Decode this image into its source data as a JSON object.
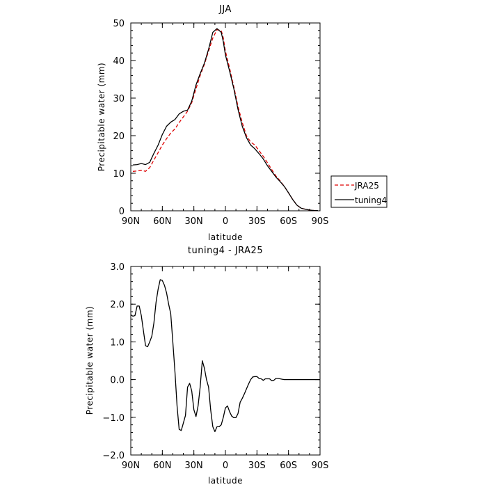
{
  "chart_data": [
    {
      "type": "line",
      "title": "JJA",
      "xlabel": "latitude",
      "ylabel": "Precipitable water (mm)",
      "xlim": [
        90,
        -90
      ],
      "ylim": [
        0,
        50
      ],
      "xticks": [
        90,
        60,
        30,
        0,
        -30,
        -60,
        -90
      ],
      "xtick_labels": [
        "90N",
        "60N",
        "30N",
        "0",
        "30S",
        "60S",
        "90S"
      ],
      "yticks": [
        0,
        10,
        20,
        30,
        40,
        50
      ],
      "ytick_labels": [
        "0",
        "10",
        "20",
        "30",
        "40",
        "50"
      ],
      "legend": {
        "placement": "right"
      },
      "series": [
        {
          "name": "JRA25",
          "color": "#dd0000",
          "dash": "dashed",
          "x": [
            88,
            84,
            80,
            76,
            72,
            68,
            64,
            60,
            56,
            52,
            48,
            44,
            40,
            36,
            32,
            28,
            24,
            20,
            16,
            12,
            8,
            4,
            2,
            0,
            -4,
            -8,
            -12,
            -16,
            -20,
            -24,
            -28,
            -32,
            -36,
            -40,
            -44,
            -48,
            -52,
            -56,
            -60,
            -64,
            -68,
            -72,
            -76,
            -80,
            -84,
            -88
          ],
          "y": [
            10.5,
            10.6,
            10.8,
            10.5,
            11.5,
            13.5,
            15.5,
            17.5,
            19.2,
            20.7,
            21.8,
            23.5,
            25.0,
            26.5,
            28.8,
            32.5,
            36.0,
            39.0,
            42.5,
            46.0,
            48.2,
            48.0,
            46.0,
            42.5,
            38.0,
            33.0,
            27.8,
            23.5,
            20.0,
            18.3,
            17.5,
            16.0,
            14.5,
            12.8,
            11.0,
            9.3,
            8.0,
            6.5,
            4.8,
            3.0,
            1.5,
            0.7,
            0.4,
            0.2,
            0.1,
            0.05
          ]
        },
        {
          "name": "tuning4",
          "color": "#000000",
          "dash": "solid",
          "x": [
            88,
            84,
            80,
            76,
            72,
            68,
            64,
            60,
            56,
            52,
            48,
            44,
            40,
            36,
            32,
            28,
            24,
            20,
            16,
            12,
            8,
            4,
            2,
            0,
            -4,
            -8,
            -12,
            -16,
            -20,
            -24,
            -28,
            -32,
            -36,
            -40,
            -44,
            -48,
            -52,
            -56,
            -60,
            -64,
            -68,
            -72,
            -76,
            -80,
            -84,
            -88
          ],
          "y": [
            12.2,
            12.3,
            12.6,
            12.3,
            12.9,
            15.3,
            17.5,
            20.3,
            22.5,
            23.6,
            24.3,
            25.8,
            26.5,
            26.8,
            29.2,
            33.5,
            36.5,
            39.3,
            43.0,
            47.5,
            48.5,
            47.5,
            45.0,
            41.5,
            37.2,
            32.5,
            27.0,
            22.5,
            19.5,
            17.5,
            16.5,
            15.2,
            13.8,
            12.0,
            10.5,
            9.0,
            7.8,
            6.5,
            4.8,
            3.0,
            1.5,
            0.7,
            0.4,
            0.2,
            0.1,
            0.05
          ]
        }
      ]
    },
    {
      "type": "line",
      "title": "tuning4 - JRA25",
      "xlabel": "latitude",
      "ylabel": "Precipitable water (mm)",
      "xlim": [
        90,
        -90
      ],
      "ylim": [
        -2,
        3
      ],
      "xticks": [
        90,
        60,
        30,
        0,
        -30,
        -60,
        -90
      ],
      "xtick_labels": [
        "90N",
        "60N",
        "30N",
        "0",
        "30S",
        "60S",
        "90S"
      ],
      "yticks": [
        -2,
        -1,
        0,
        1,
        2,
        3
      ],
      "ytick_labels": [
        "−2.0",
        "−1.0",
        "0.0",
        "1.0",
        "2.0",
        "3.0"
      ],
      "series": [
        {
          "color": "#000000",
          "dash": "solid",
          "x": [
            90,
            88,
            86,
            84,
            82,
            80,
            78,
            76,
            74,
            72,
            70,
            68,
            66,
            64,
            62,
            60,
            58,
            56,
            54,
            52,
            50,
            48,
            46,
            44,
            42,
            40,
            38,
            36,
            34,
            32,
            30,
            28,
            26,
            24,
            22,
            20,
            18,
            16,
            14,
            12,
            10,
            8,
            6,
            4,
            2,
            0,
            -2,
            -4,
            -6,
            -8,
            -10,
            -12,
            -14,
            -16,
            -18,
            -20,
            -22,
            -24,
            -26,
            -28,
            -30,
            -32,
            -34,
            -36,
            -38,
            -40,
            -42,
            -44,
            -46,
            -48,
            -50,
            -52,
            -54,
            -56,
            -58,
            -60,
            -62,
            -64,
            -66,
            -68,
            -70,
            -72,
            -74,
            -76,
            -78,
            -80,
            -82,
            -84,
            -86,
            -88,
            -90
          ],
          "y": [
            1.72,
            1.68,
            1.7,
            1.95,
            1.95,
            1.7,
            1.3,
            0.9,
            0.87,
            1.0,
            1.15,
            1.5,
            2.05,
            2.4,
            2.65,
            2.63,
            2.5,
            2.3,
            2.0,
            1.75,
            1.0,
            0.2,
            -0.7,
            -1.32,
            -1.35,
            -1.15,
            -0.95,
            -0.2,
            -0.1,
            -0.3,
            -0.8,
            -0.98,
            -0.7,
            -0.2,
            0.5,
            0.3,
            0.0,
            -0.2,
            -0.8,
            -1.25,
            -1.38,
            -1.25,
            -1.25,
            -1.2,
            -1.0,
            -0.75,
            -0.7,
            -0.85,
            -0.97,
            -1.01,
            -1.01,
            -0.9,
            -0.6,
            -0.5,
            -0.38,
            -0.25,
            -0.12,
            0.0,
            0.07,
            0.08,
            0.08,
            0.03,
            0.02,
            -0.02,
            0.02,
            0.02,
            0.02,
            -0.03,
            -0.02,
            0.03,
            0.03,
            0.02,
            0.01,
            0.0,
            0.0,
            0.0,
            0.0,
            0.0,
            0.0,
            0.0,
            0.0,
            0.0,
            0.0,
            0.0,
            0.0,
            0.0,
            0.0,
            0.0,
            0.0,
            0.0,
            0.0
          ]
        }
      ]
    }
  ]
}
